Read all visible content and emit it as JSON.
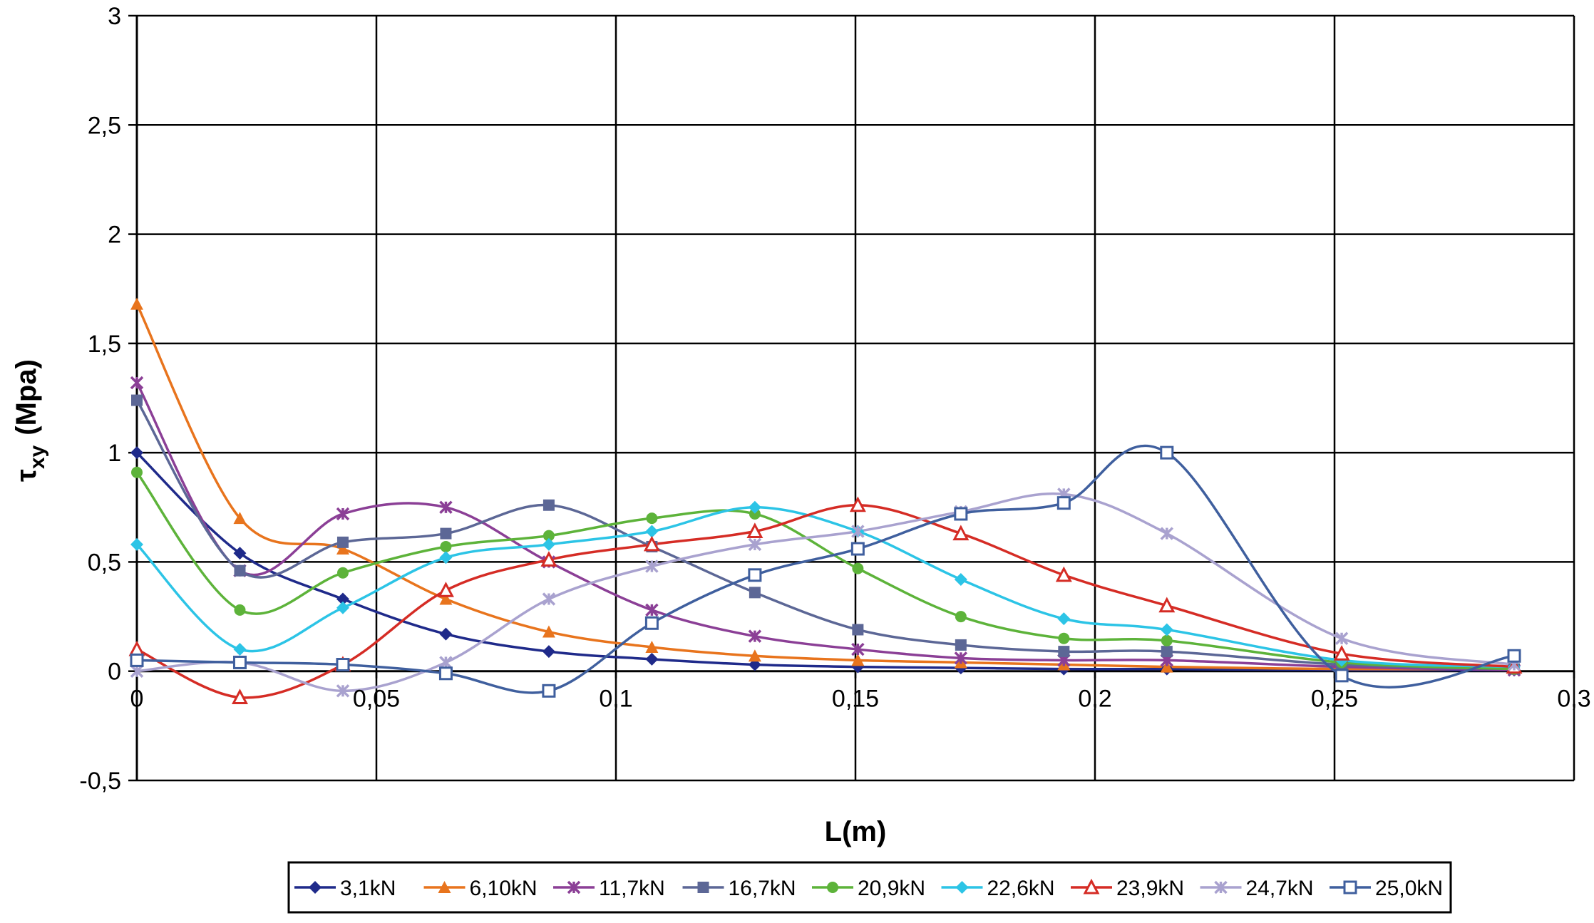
{
  "chart_data": {
    "type": "line",
    "title": "",
    "xlabel": "L(m)",
    "ylabel_main": "τ",
    "ylabel_sub": "xy",
    "ylabel_unit": "(Mpa)",
    "xlim": [
      0,
      0.3
    ],
    "ylim": [
      -0.5,
      3
    ],
    "x_ticks": [
      {
        "v": 0,
        "label": "0"
      },
      {
        "v": 0.05,
        "label": "0,05"
      },
      {
        "v": 0.1,
        "label": "0,1"
      },
      {
        "v": 0.15,
        "label": "0,15"
      },
      {
        "v": 0.2,
        "label": "0,2"
      },
      {
        "v": 0.25,
        "label": "0,25"
      },
      {
        "v": 0.3,
        "label": "0,3"
      }
    ],
    "y_ticks": [
      {
        "v": -0.5,
        "label": "-0,5"
      },
      {
        "v": 0,
        "label": "0"
      },
      {
        "v": 0.5,
        "label": "0,5"
      },
      {
        "v": 1,
        "label": "1"
      },
      {
        "v": 1.5,
        "label": "1,5"
      },
      {
        "v": 2,
        "label": "2"
      },
      {
        "v": 2.5,
        "label": "2,5"
      },
      {
        "v": 3,
        "label": "3"
      }
    ],
    "grid": true,
    "legend_position": "bottom",
    "x": [
      0,
      0.0215,
      0.043,
      0.0645,
      0.086,
      0.1075,
      0.129,
      0.1505,
      0.172,
      0.1935,
      0.215,
      0.2515,
      0.2875
    ],
    "series": [
      {
        "name": "3,1kN",
        "color": "#1f2a8a",
        "marker": "diamond",
        "values": [
          1.0,
          0.54,
          0.33,
          0.17,
          0.09,
          0.055,
          0.03,
          0.02,
          0.015,
          0.01,
          0.01,
          0.005,
          0.005
        ]
      },
      {
        "name": "6,10kN",
        "color": "#e8741d",
        "marker": "triangle",
        "values": [
          1.68,
          0.7,
          0.56,
          0.33,
          0.18,
          0.11,
          0.07,
          0.05,
          0.04,
          0.03,
          0.02,
          0.01,
          0.01
        ]
      },
      {
        "name": "11,7kN",
        "color": "#8b3f96",
        "marker": "star",
        "values": [
          1.32,
          0.46,
          0.72,
          0.75,
          0.5,
          0.28,
          0.16,
          0.1,
          0.06,
          0.05,
          0.05,
          0.02,
          0.005
        ]
      },
      {
        "name": "16,7kN",
        "color": "#5c6796",
        "marker": "square",
        "values": [
          1.24,
          0.46,
          0.59,
          0.63,
          0.76,
          0.57,
          0.36,
          0.19,
          0.12,
          0.09,
          0.09,
          0.03,
          0.01
        ]
      },
      {
        "name": "20,9kN",
        "color": "#5db33a",
        "marker": "circle",
        "values": [
          0.91,
          0.28,
          0.45,
          0.57,
          0.62,
          0.7,
          0.72,
          0.47,
          0.25,
          0.15,
          0.14,
          0.04,
          0.01
        ]
      },
      {
        "name": "22,6kN",
        "color": "#2cc4e6",
        "marker": "diamond",
        "values": [
          0.58,
          0.1,
          0.29,
          0.52,
          0.58,
          0.64,
          0.75,
          0.64,
          0.42,
          0.24,
          0.19,
          0.05,
          0.02
        ]
      },
      {
        "name": "23,9kN",
        "color": "#d52c25",
        "marker": "triangle-open",
        "values": [
          0.1,
          -0.12,
          0.03,
          0.37,
          0.51,
          0.58,
          0.64,
          0.76,
          0.63,
          0.44,
          0.3,
          0.08,
          0.02
        ]
      },
      {
        "name": "24,7kN",
        "color": "#a9a2cf",
        "marker": "star",
        "values": [
          0.0,
          0.04,
          -0.09,
          0.04,
          0.33,
          0.48,
          0.58,
          0.64,
          0.73,
          0.81,
          0.63,
          0.15,
          0.03
        ]
      },
      {
        "name": "25,0kN",
        "color": "#3f5f9e",
        "marker": "square-open",
        "values": [
          0.05,
          0.04,
          0.03,
          -0.01,
          -0.09,
          0.22,
          0.44,
          0.56,
          0.72,
          0.77,
          1.0,
          -0.02,
          0.07
        ]
      }
    ]
  }
}
